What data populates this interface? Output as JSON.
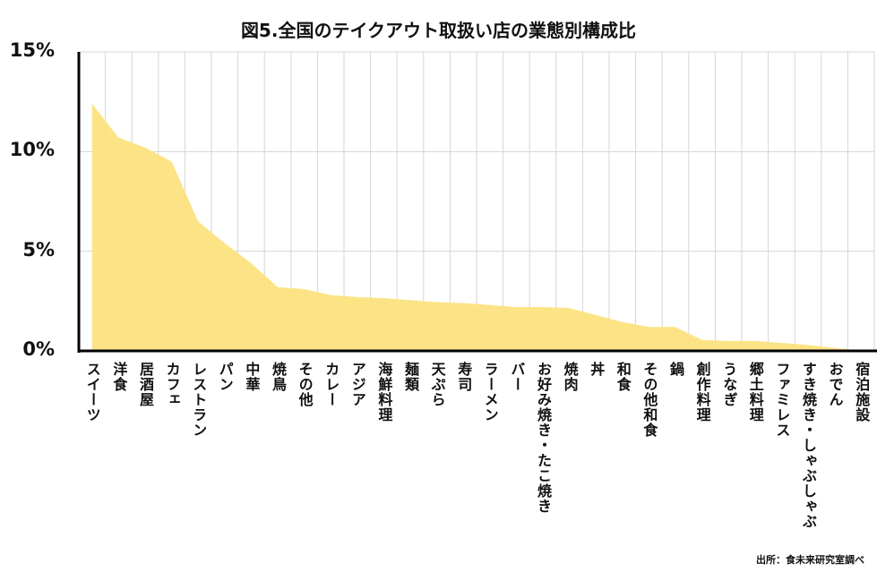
{
  "chart_data": {
    "type": "area",
    "title": "図5.全国のテイクアウト取扱い店の業態別構成比",
    "xlabel": "",
    "ylabel": "",
    "ylim": [
      0,
      15
    ],
    "yticks": [
      0,
      5,
      10,
      15
    ],
    "ytick_labels": [
      "0%",
      "5%",
      "10%",
      "15%"
    ],
    "grid": true,
    "fill_color": "#fce380",
    "categories": [
      "スイーツ",
      "洋食",
      "居酒屋",
      "カフェ",
      "レストラン",
      "パン",
      "中華",
      "焼鳥",
      "その他",
      "カレー",
      "アジア",
      "海鮮料理",
      "麺類",
      "天ぷら",
      "寿司",
      "ラーメン",
      "バー",
      "お好み焼き・たこ焼き",
      "焼肉",
      "丼",
      "和食",
      "その他和食",
      "鍋",
      "創作料理",
      "うなぎ",
      "郷土料理",
      "ファミレス",
      "すき焼き・しゃぶしゃぶ",
      "おでん",
      "宿泊施設"
    ],
    "values": [
      12.4,
      10.7,
      10.2,
      9.5,
      6.5,
      5.4,
      4.4,
      3.2,
      3.1,
      2.8,
      2.7,
      2.65,
      2.55,
      2.45,
      2.4,
      2.3,
      2.2,
      2.2,
      2.15,
      1.8,
      1.45,
      1.2,
      1.2,
      0.55,
      0.5,
      0.5,
      0.4,
      0.3,
      0.15,
      0.02
    ],
    "source": "出所：食未来研究室調べ"
  }
}
